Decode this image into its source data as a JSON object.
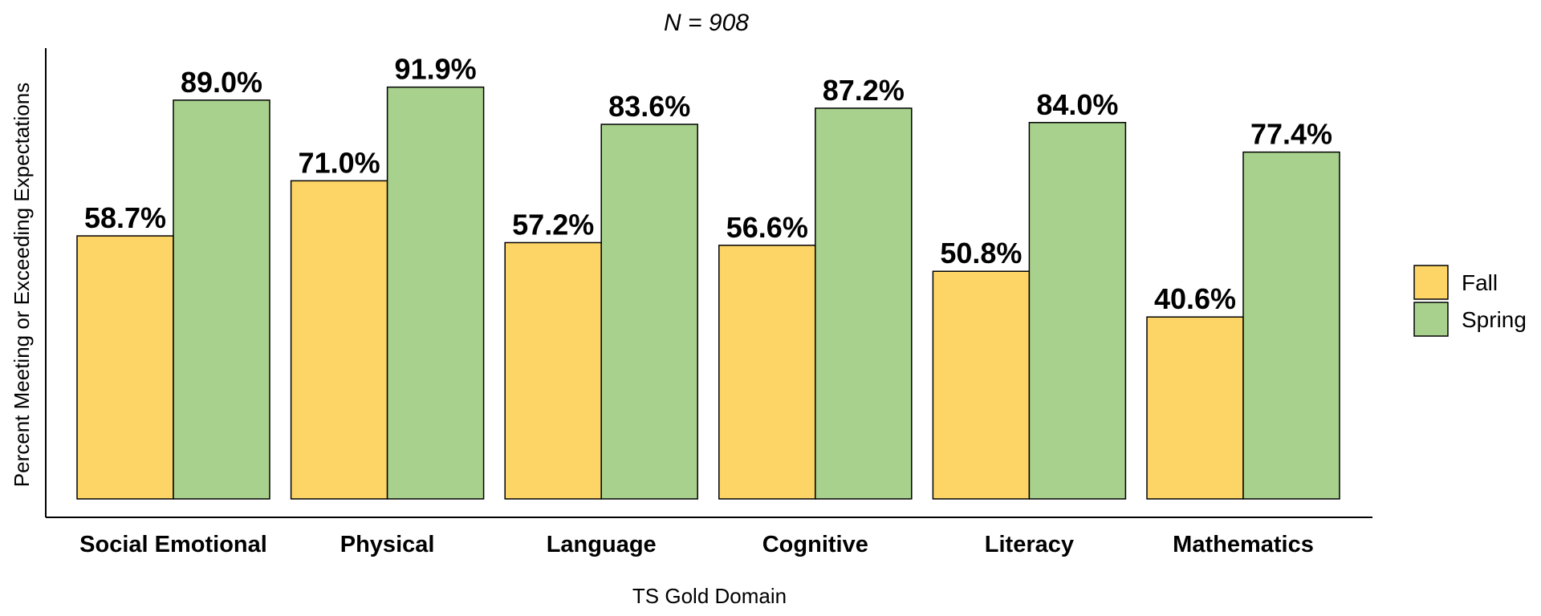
{
  "chart_data": {
    "type": "bar",
    "title": "N =  908",
    "xlabel": "TS Gold Domain",
    "ylabel": "Percent Meeting or Exceeding Expectations",
    "ylim": [
      0,
      100
    ],
    "grid": false,
    "legend_position": "right",
    "categories": [
      "Social Emotional",
      "Physical",
      "Language",
      "Cognitive",
      "Literacy",
      "Mathematics"
    ],
    "series": [
      {
        "name": "Fall",
        "color": "#FDD466",
        "values": [
          58.7,
          71.0,
          57.2,
          56.6,
          50.8,
          40.6
        ],
        "labels": [
          "58.7%",
          "71.0%",
          "57.2%",
          "56.6%",
          "50.8%",
          "40.6%"
        ]
      },
      {
        "name": "Spring",
        "color": "#A8D18D",
        "values": [
          89.0,
          91.9,
          83.6,
          87.2,
          84.0,
          77.4
        ],
        "labels": [
          "89.0%",
          "91.9%",
          "83.6%",
          "87.2%",
          "84.0%",
          "77.4%"
        ]
      }
    ]
  }
}
